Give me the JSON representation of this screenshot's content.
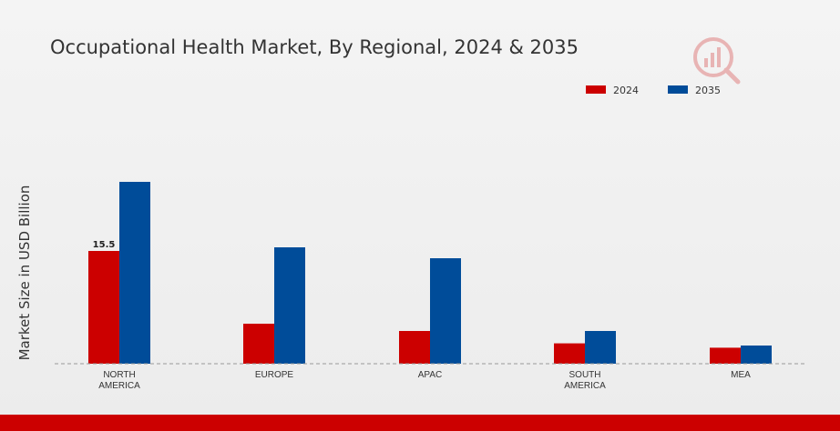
{
  "chart_data": {
    "type": "bar",
    "title": "Occupational Health Market, By Regional, 2024 & 2035",
    "ylabel": "Market Size in USD Billion",
    "xlabel": "",
    "categories": [
      [
        "NORTH",
        "AMERICA"
      ],
      [
        "EUROPE"
      ],
      [
        "APAC"
      ],
      [
        "SOUTH",
        "AMERICA"
      ],
      [
        "MEA"
      ]
    ],
    "series": [
      {
        "name": "2024",
        "color": "#cc0000",
        "values": [
          15.5,
          5.5,
          4.5,
          2.8,
          2.2
        ]
      },
      {
        "name": "2035",
        "color": "#004c99",
        "values": [
          25.0,
          16.0,
          14.5,
          4.5,
          2.5
        ]
      }
    ],
    "data_labels": [
      {
        "series": 0,
        "index": 0,
        "text": "15.5"
      }
    ],
    "ylim": [
      0,
      30
    ],
    "grid": false,
    "legend_position": "top-right"
  }
}
